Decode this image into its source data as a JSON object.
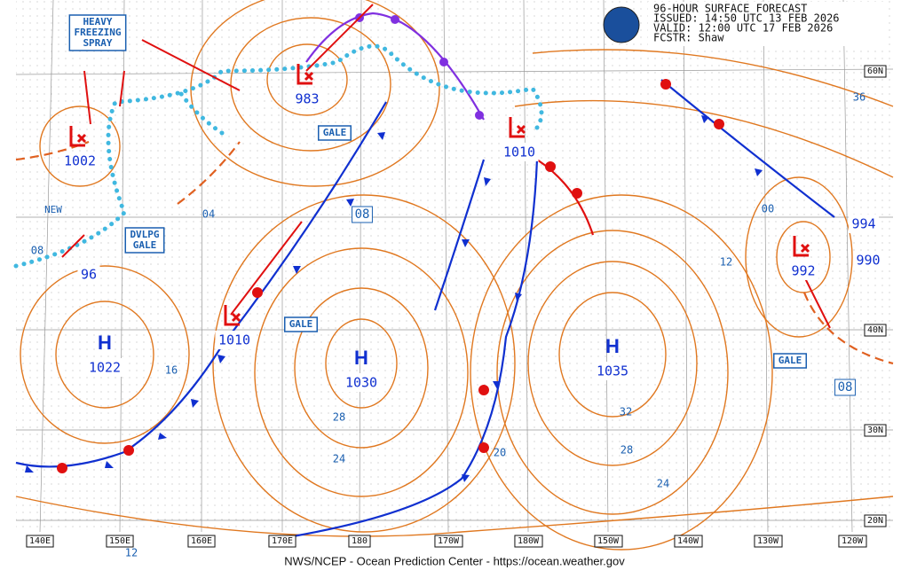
{
  "header": {
    "lines": [
      "96-HOUR SURFACE FORECAST",
      "ISSUED: 14:50 UTC 13 FEB 2026",
      "VALID:  12:00 UTC 17 FEB 2026",
      "FCSTR:  Shaw"
    ]
  },
  "footer": "NWS/NCEP - Ocean Prediction Center - https://ocean.weather.gov",
  "longitudes": [
    "140E",
    "150E",
    "160E",
    "170E",
    "180",
    "170W",
    "180W",
    "150W",
    "140W",
    "130W",
    "120W"
  ],
  "latitudes": [
    "60N",
    "40N",
    "30N",
    "20N"
  ],
  "highs": [
    {
      "symbol": "H",
      "pressure": "1022"
    },
    {
      "symbol": "H",
      "pressure": "1030"
    },
    {
      "symbol": "H",
      "pressure": "1035"
    }
  ],
  "lows": [
    "1002",
    "983",
    "1010",
    "1010",
    "992",
    "994",
    "990",
    "96"
  ],
  "isobar_labels": [
    "04",
    "08",
    "16",
    "28",
    "24",
    "32",
    "28",
    "24",
    "20",
    "36",
    "12",
    "00",
    "08",
    "08",
    "12"
  ],
  "boxes": [
    {
      "lines": [
        "HEAVY",
        "FREEZING",
        "SPRAY"
      ]
    },
    {
      "lines": [
        "DVLPG",
        "GALE"
      ]
    },
    {
      "lines": [
        "GALE"
      ]
    },
    {
      "lines": [
        "GALE"
      ]
    },
    {
      "lines": [
        "GALE"
      ]
    }
  ],
  "notes": [
    "NEW"
  ]
}
